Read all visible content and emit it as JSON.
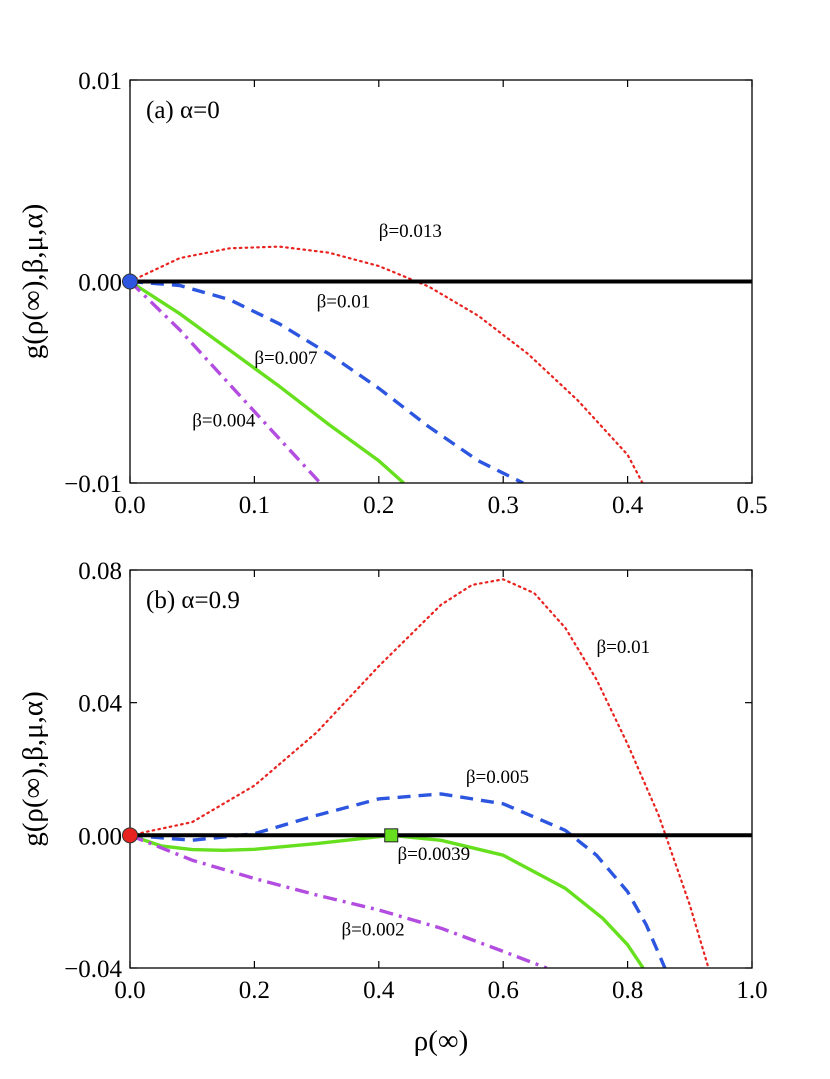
{
  "chart_data": [
    {
      "type": "line",
      "panel_label": "(a) α=0",
      "xlabel": "",
      "ylabel": "g(ρ(∞),β,μ,α)",
      "xlim": [
        0,
        0.5
      ],
      "ylim": [
        -0.01,
        0.01
      ],
      "xticks": [
        0,
        0.1,
        0.2,
        0.3,
        0.4,
        0.5
      ],
      "xtick_labels": [
        "0.0",
        "0.1",
        "0.2",
        "0.3",
        "0.4",
        "0.5"
      ],
      "yticks": [
        -0.01,
        0,
        0.01
      ],
      "ytick_labels": [
        "−0.01",
        "0.00",
        "0.01"
      ],
      "series": [
        {
          "name": "β=0.013",
          "color": "#e8231f",
          "style": "dotted",
          "x": [
            0,
            0.04,
            0.08,
            0.12,
            0.16,
            0.2,
            0.24,
            0.28,
            0.32,
            0.36,
            0.4,
            0.412
          ],
          "y": [
            0,
            0.00116,
            0.00165,
            0.00173,
            0.00143,
            0.00077,
            -0.00025,
            -0.0017,
            -0.0036,
            -0.0059,
            -0.0086,
            -0.01
          ]
        },
        {
          "name": "β=0.01",
          "color": "#2c56e0",
          "style": "dashed",
          "x": [
            0,
            0.04,
            0.08,
            0.12,
            0.16,
            0.2,
            0.24,
            0.28,
            0.316
          ],
          "y": [
            0,
            -0.0002,
            -0.0009,
            -0.0021,
            -0.0036,
            -0.0053,
            -0.0072,
            -0.0089,
            -0.01
          ]
        },
        {
          "name": "β=0.007",
          "color": "#66e01e",
          "style": "solid",
          "x": [
            0,
            0.04,
            0.08,
            0.12,
            0.16,
            0.2,
            0.22
          ],
          "y": [
            0,
            -0.0016,
            -0.0034,
            -0.0052,
            -0.0071,
            -0.0089,
            -0.01
          ]
        },
        {
          "name": "β=0.004",
          "color": "#b34de0",
          "style": "dashdot",
          "x": [
            0,
            0.04,
            0.08,
            0.12,
            0.153
          ],
          "y": [
            0,
            -0.0024,
            -0.0051,
            -0.0078,
            -0.01
          ]
        },
        {
          "name": "zero",
          "color": "#000000",
          "style": "solid-thick",
          "x": [
            0,
            0.5
          ],
          "y": [
            0,
            0
          ]
        }
      ],
      "annotations": [
        {
          "text": "β=0.013",
          "x": 0.2,
          "y": 0.0022
        },
        {
          "text": "β=0.01",
          "x": 0.15,
          "y": -0.0013
        },
        {
          "text": "β=0.007",
          "x": 0.1,
          "y": -0.0041
        },
        {
          "text": "β=0.004",
          "x": 0.05,
          "y": -0.0072
        }
      ],
      "markers": [
        {
          "name": "origin-point",
          "shape": "circle",
          "color": "#2c56e0",
          "x": 0,
          "y": 0
        }
      ]
    },
    {
      "type": "line",
      "panel_label": "(b) α=0.9",
      "xlabel": "ρ(∞)",
      "ylabel": "g(ρ(∞),β,μ,α)",
      "xlim": [
        0,
        1.0
      ],
      "ylim": [
        -0.04,
        0.08
      ],
      "xticks": [
        0,
        0.2,
        0.4,
        0.6,
        0.8,
        1.0
      ],
      "xtick_labels": [
        "0.0",
        "0.2",
        "0.4",
        "0.6",
        "0.8",
        "1.0"
      ],
      "yticks": [
        -0.04,
        0,
        0.04,
        0.08
      ],
      "ytick_labels": [
        "−0.04",
        "0.00",
        "0.04",
        "0.08"
      ],
      "series": [
        {
          "name": "β=0.01",
          "color": "#e8231f",
          "style": "dotted",
          "x": [
            0,
            0.1,
            0.2,
            0.3,
            0.4,
            0.5,
            0.55,
            0.6,
            0.65,
            0.7,
            0.75,
            0.8,
            0.85,
            0.9,
            0.93
          ],
          "y": [
            0,
            0.004,
            0.015,
            0.031,
            0.051,
            0.0695,
            0.0755,
            0.0772,
            0.073,
            0.0625,
            0.047,
            0.0275,
            0.006,
            -0.021,
            -0.04
          ]
        },
        {
          "name": "β=0.005",
          "color": "#2c56e0",
          "style": "dashed",
          "x": [
            0,
            0.1,
            0.2,
            0.3,
            0.4,
            0.5,
            0.6,
            0.7,
            0.75,
            0.8,
            0.83,
            0.86
          ],
          "y": [
            0,
            -0.0015,
            0.0005,
            0.006,
            0.011,
            0.0125,
            0.0095,
            0.0015,
            -0.006,
            -0.017,
            -0.027,
            -0.04
          ]
        },
        {
          "name": "β=0.0039",
          "color": "#66e01e",
          "style": "solid",
          "x": [
            0,
            0.05,
            0.1,
            0.15,
            0.2,
            0.3,
            0.42,
            0.5,
            0.6,
            0.7,
            0.76,
            0.8,
            0.825
          ],
          "y": [
            0,
            -0.0032,
            -0.0043,
            -0.0045,
            -0.0042,
            -0.0025,
            0,
            -0.0015,
            -0.006,
            -0.016,
            -0.025,
            -0.033,
            -0.04
          ]
        },
        {
          "name": "β=0.002",
          "color": "#b34de0",
          "style": "dashdot",
          "x": [
            0,
            0.1,
            0.2,
            0.3,
            0.4,
            0.5,
            0.6,
            0.67
          ],
          "y": [
            0,
            -0.0075,
            -0.013,
            -0.018,
            -0.0225,
            -0.028,
            -0.035,
            -0.04
          ]
        },
        {
          "name": "zero",
          "color": "#000000",
          "style": "solid-thick",
          "x": [
            0,
            1.0
          ],
          "y": [
            0,
            0
          ]
        }
      ],
      "annotations": [
        {
          "text": "β=0.01",
          "x": 0.75,
          "y": 0.055
        },
        {
          "text": "β=0.005",
          "x": 0.54,
          "y": 0.0158
        },
        {
          "text": "β=0.0039",
          "x": 0.43,
          "y": -0.0075
        },
        {
          "text": "β=0.002",
          "x": 0.34,
          "y": -0.0302
        }
      ],
      "markers": [
        {
          "name": "origin-point",
          "shape": "circle",
          "color": "#e8231f",
          "x": 0,
          "y": 0
        },
        {
          "name": "tangent-point",
          "shape": "square",
          "color": "#66e01e",
          "x": 0.42,
          "y": 0
        }
      ]
    }
  ]
}
